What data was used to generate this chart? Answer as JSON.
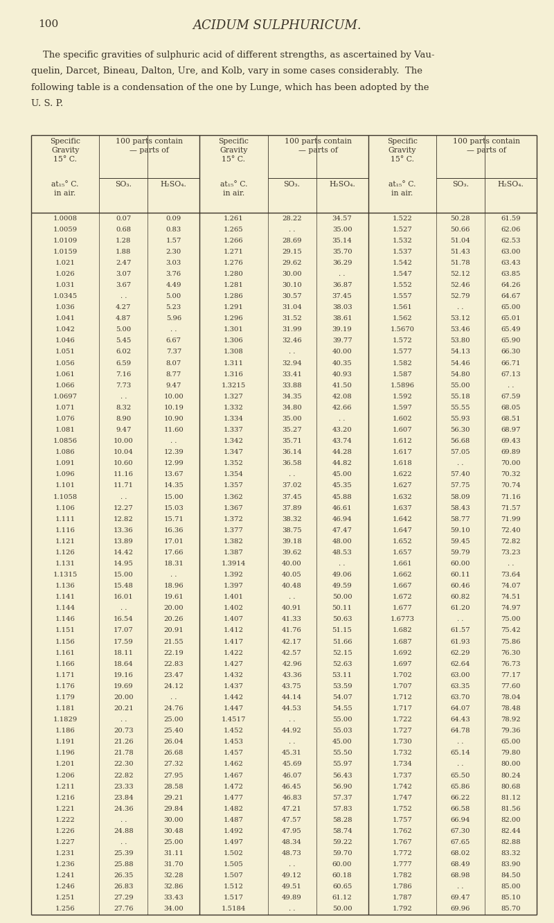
{
  "page_number": "100",
  "title": "ACIDUM SULPHURICUM.",
  "intro_line1": "    The specific gravities of sulphuric acid of different strengths, as ascertained by Vau-",
  "intro_line2": "quelin, Darcet, Bineau, Dalton, Ure, and Kolb, vary in some cases considerably.  The",
  "intro_line3": "following table is a condensation of the one by Lunge, which has been adopted by the",
  "intro_line4": "U. S. P.",
  "bg_color": "#f5f0d5",
  "text_color": "#3a3328",
  "rows": [
    [
      "1.0008",
      "0.07",
      "0.09",
      "1.261",
      "28.22",
      "34.57",
      "1.522",
      "50.28",
      "61.59"
    ],
    [
      "1.0059",
      "0.68",
      "0.83",
      "1.265",
      ". .",
      "35.00",
      "1.527",
      "50.66",
      "62.06"
    ],
    [
      "1.0109",
      "1.28",
      "1.57",
      "1.266",
      "28.69",
      "35.14",
      "1.532",
      "51.04",
      "62.53"
    ],
    [
      "1.0159",
      "1.88",
      "2.30",
      "1.271",
      "29.15",
      "35.70",
      "1.537",
      "51.43",
      "63.00"
    ],
    [
      "1.021",
      "2.47",
      "3.03",
      "1.276",
      "29.62",
      "36.29",
      "1.542",
      "51.78",
      "63.43"
    ],
    [
      "1.026",
      "3.07",
      "3.76",
      "1.280",
      "30.00",
      ". .",
      "1.547",
      "52.12",
      "63.85"
    ],
    [
      "1.031",
      "3.67",
      "4.49",
      "1.281",
      "30.10",
      "36.87",
      "1.552",
      "52.46",
      "64.26"
    ],
    [
      "1.0345",
      ". .",
      "5.00",
      "1.286",
      "30.57",
      "37.45",
      "1.557",
      "52.79",
      "64.67"
    ],
    [
      "1.036",
      "4.27",
      "5.23",
      "1.291",
      "31.04",
      "38.03",
      "1.561",
      ". .",
      "65.00"
    ],
    [
      "1.041",
      "4.87",
      "5.96",
      "1.296",
      "31.52",
      "38.61",
      "1.562",
      "53.12",
      "65.01"
    ],
    [
      "1.042",
      "5.00",
      ". .",
      "1.301",
      "31.99",
      "39.19",
      "1.5670",
      "53.46",
      "65.49"
    ],
    [
      "1.046",
      "5.45",
      "6.67",
      "1.306",
      "32.46",
      "39.77",
      "1.572",
      "53.80",
      "65.90"
    ],
    [
      "1.051",
      "6.02",
      "7.37",
      "1.308",
      ". .",
      "40.00",
      "1.577",
      "54.13",
      "66.30"
    ],
    [
      "1.056",
      "6.59",
      "8.07",
      "1.311",
      "32.94",
      "40.35",
      "1.582",
      "54.46",
      "66.71"
    ],
    [
      "1.061",
      "7.16",
      "8.77",
      "1.316",
      "33.41",
      "40.93",
      "1.587",
      "54.80",
      "67.13"
    ],
    [
      "1.066",
      "7.73",
      "9.47",
      "1.3215",
      "33.88",
      "41.50",
      "1.5896",
      "55.00",
      ". ."
    ],
    [
      "1.0697",
      ". .",
      "10.00",
      "1.327",
      "34.35",
      "42.08",
      "1.592",
      "55.18",
      "67.59"
    ],
    [
      "1.071",
      "8.32",
      "10.19",
      "1.332",
      "34.80",
      "42.66",
      "1.597",
      "55.55",
      "68.05"
    ],
    [
      "1.076",
      "8.90",
      "10.90",
      "1.334",
      "35.00",
      ". .",
      "1.602",
      "55.93",
      "68.51"
    ],
    [
      "1.081",
      "9.47",
      "11.60",
      "1.337",
      "35.27",
      "43.20",
      "1.607",
      "56.30",
      "68.97"
    ],
    [
      "1.0856",
      "10.00",
      ". .",
      "1.342",
      "35.71",
      "43.74",
      "1.612",
      "56.68",
      "69.43"
    ],
    [
      "1.086",
      "10.04",
      "12.39",
      "1.347",
      "36.14",
      "44.28",
      "1.617",
      "57.05",
      "69.89"
    ],
    [
      "1.091",
      "10.60",
      "12.99",
      "1.352",
      "36.58",
      "44.82",
      "1.618",
      ". .",
      "70.00"
    ],
    [
      "1.096",
      "11.16",
      "13.67",
      "1.354",
      ". .",
      "45.00",
      "1.622",
      "57.40",
      "70.32"
    ],
    [
      "1.101",
      "11.71",
      "14.35",
      "1.357",
      "37.02",
      "45.35",
      "1.627",
      "57.75",
      "70.74"
    ],
    [
      "1.1058",
      ". .",
      "15.00",
      "1.362",
      "37.45",
      "45.88",
      "1.632",
      "58.09",
      "71.16"
    ],
    [
      "1.106",
      "12.27",
      "15.03",
      "1.367",
      "37.89",
      "46.61",
      "1.637",
      "58.43",
      "71.57"
    ],
    [
      "1.111",
      "12.82",
      "15.71",
      "1.372",
      "38.32",
      "46.94",
      "1.642",
      "58.77",
      "71.99"
    ],
    [
      "1.116",
      "13.36",
      "16.36",
      "1.377",
      "38.75",
      "47.47",
      "1.647",
      "59.10",
      "72.40"
    ],
    [
      "1.121",
      "13.89",
      "17.01",
      "1.382",
      "39.18",
      "48.00",
      "1.652",
      "59.45",
      "72.82"
    ],
    [
      "1.126",
      "14.42",
      "17.66",
      "1.387",
      "39.62",
      "48.53",
      "1.657",
      "59.79",
      "73.23"
    ],
    [
      "1.131",
      "14.95",
      "18.31",
      "1.3914",
      "40.00",
      ". .",
      "1.661",
      "60.00",
      ". ."
    ],
    [
      "1.1315",
      "15.00",
      ". .",
      "1.392",
      "40.05",
      "49.06",
      "1.662",
      "60.11",
      "73.64"
    ],
    [
      "1.136",
      "15.48",
      "18.96",
      "1.397",
      "40.48",
      "49.59",
      "1.667",
      "60.46",
      "74.07"
    ],
    [
      "1.141",
      "16.01",
      "19.61",
      "1.401",
      ". .",
      "50.00",
      "1.672",
      "60.82",
      "74.51"
    ],
    [
      "1.144",
      ". .",
      "20.00",
      "1.402",
      "40.91",
      "50.11",
      "1.677",
      "61.20",
      "74.97"
    ],
    [
      "1.146",
      "16.54",
      "20.26",
      "1.407",
      "41.33",
      "50.63",
      "1.6773",
      ". .",
      "75.00"
    ],
    [
      "1.151",
      "17.07",
      "20.91",
      "1.412",
      "41.76",
      "51.15",
      "1.682",
      "61.57",
      "75.42"
    ],
    [
      "1.156",
      "17.59",
      "21.55",
      "1.417",
      "42.17",
      "51.66",
      "1.687",
      "61.93",
      "75.86"
    ],
    [
      "1.161",
      "18.11",
      "22.19",
      "1.422",
      "42.57",
      "52.15",
      "1.692",
      "62.29",
      "76.30"
    ],
    [
      "1.166",
      "18.64",
      "22.83",
      "1.427",
      "42.96",
      "52.63",
      "1.697",
      "62.64",
      "76.73"
    ],
    [
      "1.171",
      "19.16",
      "23.47",
      "1.432",
      "43.36",
      "53.11",
      "1.702",
      "63.00",
      "77.17"
    ],
    [
      "1.176",
      "19.69",
      "24.12",
      "1.437",
      "43.75",
      "53.59",
      "1.707",
      "63.35",
      "77.60"
    ],
    [
      "1.179",
      "20.00",
      ". .",
      "1.442",
      "44.14",
      "54.07",
      "1.712",
      "63.70",
      "78.04"
    ],
    [
      "1.181",
      "20.21",
      "24.76",
      "1.447",
      "44.53",
      "54.55",
      "1.717",
      "64.07",
      "78.48"
    ],
    [
      "1.1829",
      ". .",
      "25.00",
      "1.4517",
      ". .",
      "55.00",
      "1.722",
      "64.43",
      "78.92"
    ],
    [
      "1.186",
      "20.73",
      "25.40",
      "1.452",
      "44.92",
      "55.03",
      "1.727",
      "64.78",
      "79.36"
    ],
    [
      "1.191",
      "21.26",
      "26.04",
      "1.453",
      ". .",
      "45.00",
      "1.730",
      ". .",
      "65.00"
    ],
    [
      "1.196",
      "21.78",
      "26.68",
      "1.457",
      "45.31",
      "55.50",
      "1.732",
      "65.14",
      "79.80"
    ],
    [
      "1.201",
      "22.30",
      "27.32",
      "1.462",
      "45.69",
      "55.97",
      "1.734",
      ". .",
      "80.00"
    ],
    [
      "1.206",
      "22.82",
      "27.95",
      "1.467",
      "46.07",
      "56.43",
      "1.737",
      "65.50",
      "80.24"
    ],
    [
      "1.211",
      "23.33",
      "28.58",
      "1.472",
      "46.45",
      "56.90",
      "1.742",
      "65.86",
      "80.68"
    ],
    [
      "1.216",
      "23.84",
      "29.21",
      "1.477",
      "46.83",
      "57.37",
      "1.747",
      "66.22",
      "81.12"
    ],
    [
      "1.221",
      "24.36",
      "29.84",
      "1.482",
      "47.21",
      "57.83",
      "1.752",
      "66.58",
      "81.56"
    ],
    [
      "1.222",
      ". .",
      "30.00",
      "1.487",
      "47.57",
      "58.28",
      "1.757",
      "66.94",
      "82.00"
    ],
    [
      "1.226",
      "24.88",
      "30.48",
      "1.492",
      "47.95",
      "58.74",
      "1.762",
      "67.30",
      "82.44"
    ],
    [
      "1.227",
      ". .",
      "25.00",
      "1.497",
      "48.34",
      "59.22",
      "1.767",
      "67.65",
      "82.88"
    ],
    [
      "1.231",
      "25.39",
      "31.11",
      "1.502",
      "48.73",
      "59.70",
      "1.772",
      "68.02",
      "83.32"
    ],
    [
      "1.236",
      "25.88",
      "31.70",
      "1.505",
      ". .",
      "60.00",
      "1.777",
      "68.49",
      "83.90"
    ],
    [
      "1.241",
      "26.35",
      "32.28",
      "1.507",
      "49.12",
      "60.18",
      "1.782",
      "68.98",
      "84.50"
    ],
    [
      "1.246",
      "26.83",
      "32.86",
      "1.512",
      "49.51",
      "60.65",
      "1.786",
      ". .",
      "85.00"
    ],
    [
      "1.251",
      "27.29",
      "33.43",
      "1.517",
      "49.89",
      "61.12",
      "1.787",
      "69.47",
      "85.10"
    ],
    [
      "1.256",
      "27.76",
      "34.00",
      "1.5184",
      ". .",
      "50.00",
      "1.792",
      "69.96",
      "85.70"
    ]
  ]
}
